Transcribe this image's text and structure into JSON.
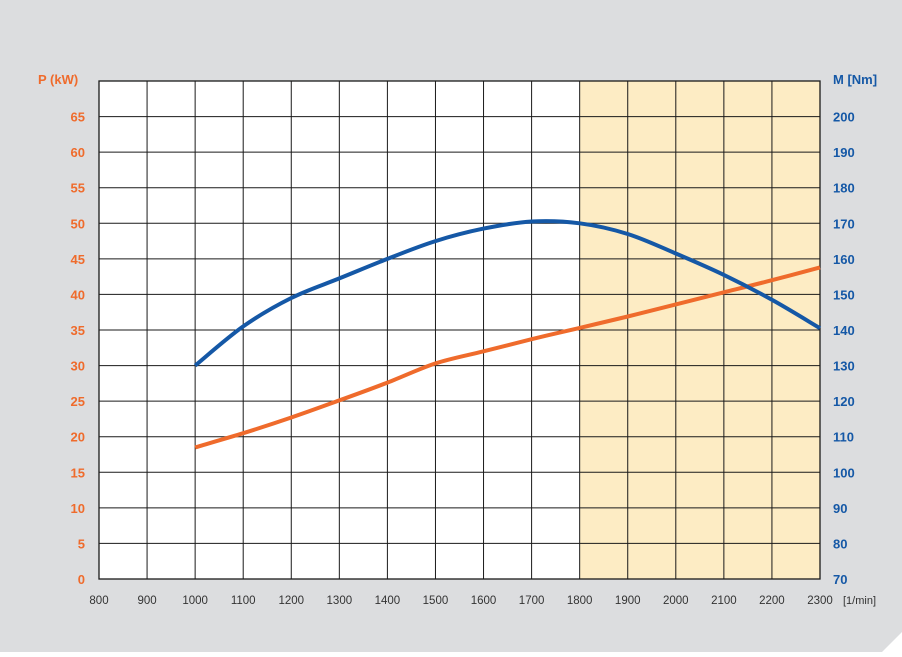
{
  "colors": {
    "background": "#dcdddf",
    "plot_area": "#ffffff",
    "highlight_band": "#fdecc4",
    "grid": "#1a1a1a",
    "power": "#ef6b2c",
    "torque": "#1558a6",
    "x_tick_text": "#333333"
  },
  "chart_data": {
    "type": "line",
    "x_unit_label": "[1/min]",
    "left_axis": {
      "label": "P (kW)",
      "range": [
        0,
        70
      ],
      "ticks": [
        0,
        5,
        10,
        15,
        20,
        25,
        30,
        35,
        40,
        45,
        50,
        55,
        60,
        65
      ]
    },
    "right_axis": {
      "label": "M [Nm]",
      "range": [
        70,
        210
      ],
      "ticks": [
        70,
        80,
        90,
        100,
        110,
        120,
        130,
        140,
        150,
        160,
        170,
        180,
        190,
        200
      ]
    },
    "x_axis": {
      "range": [
        800,
        2300
      ],
      "ticks": [
        800,
        900,
        1000,
        1100,
        1200,
        1300,
        1400,
        1500,
        1600,
        1700,
        1800,
        1900,
        2000,
        2100,
        2200,
        2300
      ]
    },
    "highlight_x_range": [
      1800,
      2300
    ],
    "grid": true,
    "series": [
      {
        "key": "power",
        "axis": "left",
        "color": "#ef6b2c",
        "x": [
          1000,
          1100,
          1200,
          1300,
          1400,
          1500,
          1600,
          1700,
          1800,
          1900,
          2000,
          2100,
          2200,
          2300
        ],
        "y": [
          18.5,
          20.5,
          22.7,
          25.1,
          27.6,
          30.3,
          32.0,
          33.7,
          35.3,
          36.9,
          38.6,
          40.3,
          42.0,
          43.8
        ]
      },
      {
        "key": "torque",
        "axis": "right",
        "color": "#1558a6",
        "x": [
          1000,
          1100,
          1200,
          1300,
          1400,
          1500,
          1600,
          1700,
          1800,
          1900,
          2000,
          2100,
          2200,
          2300
        ],
        "y": [
          130,
          141,
          149,
          154.5,
          160,
          165,
          168.5,
          170.5,
          170,
          167,
          161.5,
          155.5,
          148.5,
          140.5
        ]
      }
    ]
  }
}
